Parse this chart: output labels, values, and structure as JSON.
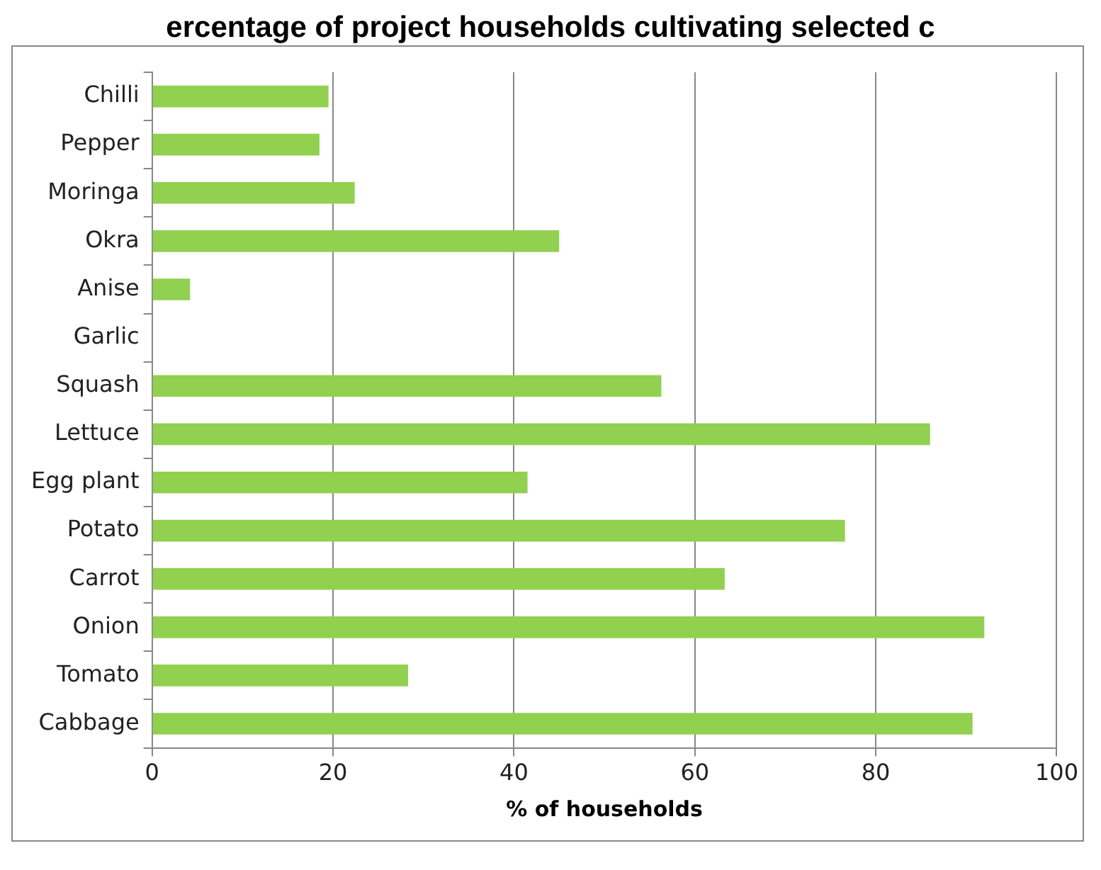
{
  "chart_data": {
    "type": "bar",
    "orientation": "horizontal",
    "title": "ercentage of project households cultivating selected c",
    "xlabel": "% of households",
    "categories": [
      "Chilli",
      "Pepper",
      "Moringa",
      "Okra",
      "Anise",
      "Garlic",
      "Squash",
      "Lettuce",
      "Egg plant",
      "Potato",
      "Carrot",
      "Onion",
      "Tomato",
      "Cabbage"
    ],
    "values": [
      19.5,
      18.5,
      22.4,
      45,
      4.2,
      0,
      56.3,
      86,
      41.5,
      76.6,
      63.3,
      92,
      28.3,
      90.7
    ],
    "color": "#92d050",
    "xlim": [
      0,
      100
    ],
    "xticks": [
      0,
      20,
      40,
      60,
      80,
      100
    ],
    "grid": "x",
    "legend": false
  }
}
